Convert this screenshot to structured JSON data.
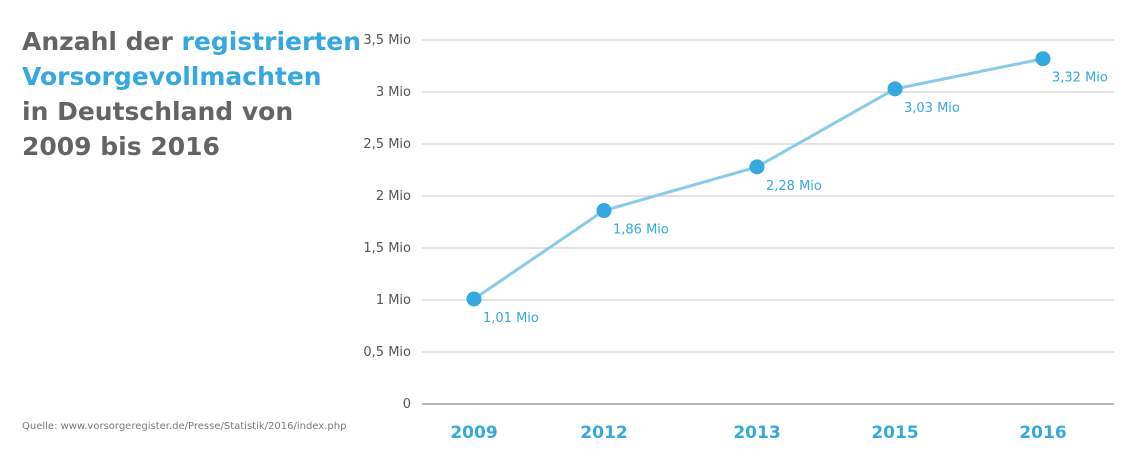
{
  "title": {
    "part1": "Anzahl der ",
    "part2": "registrierten",
    "part3": "Vorsorgevollmachten",
    "part4": "in Deutschland von",
    "part5": "2009 bis 2016"
  },
  "source": "Quelle: www.vorsorgeregister.de/Presse/Statistik/2016/index.php",
  "colors": {
    "accent": "#35a8df",
    "line": "#87cbe8",
    "title_gray": "#646464",
    "grid": "#d9d9d9"
  },
  "chart_data": {
    "type": "line",
    "categories": [
      "2009",
      "2012",
      "2013",
      "2015",
      "2016"
    ],
    "series": [
      {
        "values": [
          1.01,
          1.86,
          2.28,
          3.03,
          3.32
        ],
        "labels": [
          "1,01 Mio",
          "1,86 Mio",
          "2,28 Mio",
          "3,03 Mio",
          "3,32 Mio"
        ]
      }
    ],
    "yticks": [
      {
        "value": 0,
        "label": "0"
      },
      {
        "value": 0.5,
        "label": "0,5 Mio"
      },
      {
        "value": 1,
        "label": "1 Mio"
      },
      {
        "value": 1.5,
        "label": "1,5 Mio"
      },
      {
        "value": 2,
        "label": "2 Mio"
      },
      {
        "value": 2.5,
        "label": "2,5 Mio"
      },
      {
        "value": 3,
        "label": "3 Mio"
      },
      {
        "value": 3.5,
        "label": "3,5 Mio"
      }
    ],
    "ylim": [
      0,
      3.5
    ],
    "grid": true,
    "xlabel": "",
    "ylabel": ""
  }
}
